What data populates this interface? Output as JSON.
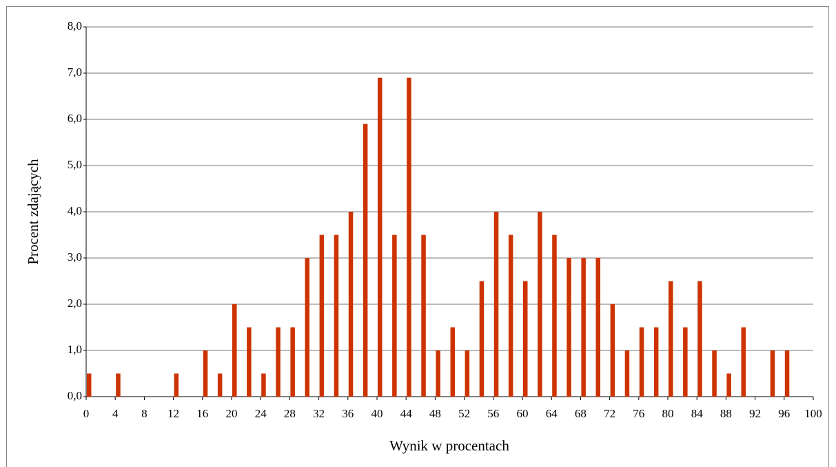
{
  "chart_data": {
    "type": "bar",
    "x_label": "Wynik w procentach",
    "y_label": "Procent zdających",
    "x": [
      0,
      2,
      4,
      6,
      8,
      10,
      12,
      14,
      16,
      18,
      20,
      22,
      24,
      26,
      28,
      30,
      32,
      34,
      36,
      38,
      40,
      42,
      44,
      46,
      48,
      50,
      52,
      54,
      56,
      58,
      60,
      62,
      64,
      66,
      68,
      70,
      72,
      74,
      76,
      78,
      80,
      82,
      84,
      86,
      88,
      90,
      92,
      94,
      96
    ],
    "values": [
      0.5,
      0,
      0.5,
      0,
      0,
      0,
      0.5,
      0,
      1.0,
      0.5,
      2.0,
      1.5,
      0.5,
      1.5,
      1.5,
      3.0,
      3.5,
      3.5,
      4.0,
      5.9,
      6.9,
      3.5,
      6.9,
      3.5,
      1.0,
      1.5,
      1.0,
      2.5,
      4.0,
      3.5,
      2.5,
      4.0,
      3.5,
      3.0,
      3.0,
      3.0,
      2.0,
      1.0,
      1.5,
      1.5,
      2.5,
      1.5,
      2.5,
      1.0,
      0.5,
      1.5,
      0,
      1.0,
      1.0
    ],
    "color": "#cc3300",
    "xlim": [
      0,
      100
    ],
    "xticks": [
      0,
      4,
      8,
      12,
      16,
      20,
      24,
      28,
      32,
      36,
      40,
      44,
      48,
      52,
      56,
      60,
      64,
      68,
      72,
      76,
      80,
      84,
      88,
      92,
      96,
      100
    ],
    "ylim": [
      0,
      8
    ],
    "yticks": [
      {
        "value": 0,
        "label": "0,0"
      },
      {
        "value": 1,
        "label": "1,0"
      },
      {
        "value": 2,
        "label": "2,0"
      },
      {
        "value": 3,
        "label": "3,0"
      },
      {
        "value": 4,
        "label": "4,0"
      },
      {
        "value": 5,
        "label": "5,0"
      },
      {
        "value": 6,
        "label": "6,0"
      },
      {
        "value": 7,
        "label": "7,0"
      },
      {
        "value": 8,
        "label": "8,0"
      }
    ],
    "grid": true
  }
}
